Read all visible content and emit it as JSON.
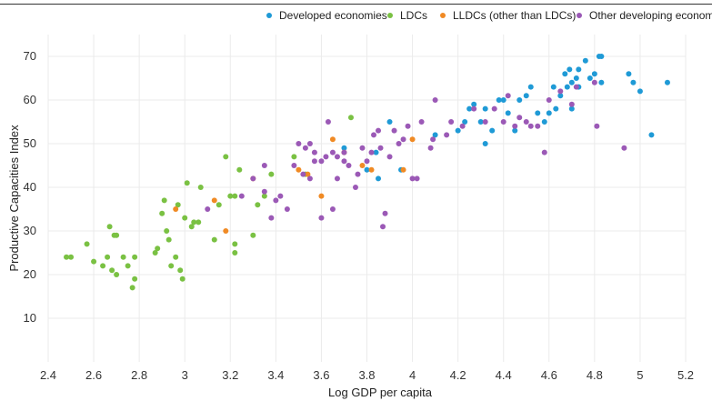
{
  "chart_data": {
    "type": "scatter",
    "xlabel": "Log GDP per capita",
    "ylabel": "Productive Capacities Index",
    "xlim": [
      2.4,
      5.2
    ],
    "ylim": [
      0,
      75
    ],
    "xticks": [
      "2.4",
      "2.6",
      "2.8",
      "3",
      "3.2",
      "3.4",
      "3.6",
      "3.8",
      "4",
      "4.2",
      "4.4",
      "4.6",
      "4.8",
      "5",
      "5.2"
    ],
    "xtick_values": [
      2.4,
      2.6,
      2.8,
      3.0,
      3.2,
      3.4,
      3.6,
      3.8,
      4.0,
      4.2,
      4.4,
      4.6,
      4.8,
      5.0,
      5.2
    ],
    "yticks": [
      "10",
      "20",
      "30",
      "40",
      "50",
      "60",
      "70"
    ],
    "ytick_values": [
      10,
      20,
      30,
      40,
      50,
      60,
      70
    ],
    "grid": true,
    "legend_position": "top-right",
    "series": [
      {
        "name": "Developed economies",
        "color": "#1f9ad6",
        "points": [
          [
            3.7,
            49
          ],
          [
            3.8,
            44
          ],
          [
            3.84,
            48
          ],
          [
            3.85,
            42
          ],
          [
            3.9,
            55
          ],
          [
            3.95,
            44
          ],
          [
            4.1,
            52
          ],
          [
            4.2,
            53
          ],
          [
            4.23,
            55
          ],
          [
            4.25,
            58
          ],
          [
            4.27,
            59
          ],
          [
            4.3,
            55
          ],
          [
            4.32,
            58
          ],
          [
            4.32,
            50
          ],
          [
            4.35,
            53
          ],
          [
            4.38,
            60
          ],
          [
            4.4,
            60
          ],
          [
            4.42,
            57
          ],
          [
            4.45,
            53
          ],
          [
            4.47,
            60
          ],
          [
            4.5,
            61
          ],
          [
            4.52,
            63
          ],
          [
            4.55,
            57
          ],
          [
            4.58,
            55
          ],
          [
            4.6,
            57
          ],
          [
            4.62,
            63
          ],
          [
            4.63,
            58
          ],
          [
            4.65,
            61
          ],
          [
            4.67,
            66
          ],
          [
            4.68,
            63
          ],
          [
            4.69,
            67
          ],
          [
            4.7,
            58
          ],
          [
            4.7,
            64
          ],
          [
            4.72,
            65
          ],
          [
            4.73,
            67
          ],
          [
            4.73,
            63
          ],
          [
            4.76,
            69
          ],
          [
            4.78,
            65
          ],
          [
            4.8,
            66
          ],
          [
            4.82,
            70
          ],
          [
            4.83,
            70
          ],
          [
            4.83,
            64
          ],
          [
            4.95,
            66
          ],
          [
            4.97,
            64
          ],
          [
            5.0,
            62
          ],
          [
            5.05,
            52
          ],
          [
            5.12,
            64
          ]
        ]
      },
      {
        "name": "LDCs",
        "color": "#7ac143",
        "points": [
          [
            2.48,
            24
          ],
          [
            2.5,
            24
          ],
          [
            2.57,
            27
          ],
          [
            2.6,
            23
          ],
          [
            2.64,
            22
          ],
          [
            2.66,
            24
          ],
          [
            2.67,
            31
          ],
          [
            2.68,
            21
          ],
          [
            2.69,
            29
          ],
          [
            2.7,
            20
          ],
          [
            2.7,
            29
          ],
          [
            2.73,
            24
          ],
          [
            2.75,
            22
          ],
          [
            2.77,
            17
          ],
          [
            2.78,
            19
          ],
          [
            2.78,
            24
          ],
          [
            2.87,
            25
          ],
          [
            2.88,
            26
          ],
          [
            2.9,
            34
          ],
          [
            2.91,
            37
          ],
          [
            2.92,
            30
          ],
          [
            2.93,
            28
          ],
          [
            2.94,
            22
          ],
          [
            2.96,
            24
          ],
          [
            2.97,
            36
          ],
          [
            2.98,
            21
          ],
          [
            2.99,
            19
          ],
          [
            3.0,
            33
          ],
          [
            3.01,
            41
          ],
          [
            3.03,
            31
          ],
          [
            3.04,
            32
          ],
          [
            3.06,
            32
          ],
          [
            3.07,
            40
          ],
          [
            3.13,
            28
          ],
          [
            3.15,
            36
          ],
          [
            3.18,
            47
          ],
          [
            3.2,
            38
          ],
          [
            3.22,
            38
          ],
          [
            3.22,
            27
          ],
          [
            3.22,
            25
          ],
          [
            3.24,
            44
          ],
          [
            3.3,
            29
          ],
          [
            3.32,
            36
          ],
          [
            3.35,
            38
          ],
          [
            3.38,
            43
          ],
          [
            3.48,
            47
          ],
          [
            3.53,
            43
          ],
          [
            3.73,
            56
          ]
        ]
      },
      {
        "name": "LLDCs (other than LDCs)",
        "color": "#f08a24",
        "points": [
          [
            2.96,
            35
          ],
          [
            3.13,
            37
          ],
          [
            3.18,
            30
          ],
          [
            3.3,
            42
          ],
          [
            3.5,
            44
          ],
          [
            3.54,
            43
          ],
          [
            3.6,
            38
          ],
          [
            3.65,
            51
          ],
          [
            3.7,
            48
          ],
          [
            3.78,
            45
          ],
          [
            3.82,
            44
          ],
          [
            3.96,
            44
          ],
          [
            4.0,
            51
          ]
        ]
      },
      {
        "name": "Other developing economies",
        "color": "#9b59b6",
        "points": [
          [
            3.1,
            35
          ],
          [
            3.25,
            38
          ],
          [
            3.3,
            42
          ],
          [
            3.35,
            39
          ],
          [
            3.35,
            45
          ],
          [
            3.38,
            33
          ],
          [
            3.4,
            37
          ],
          [
            3.42,
            38
          ],
          [
            3.45,
            35
          ],
          [
            3.48,
            45
          ],
          [
            3.5,
            50
          ],
          [
            3.52,
            43
          ],
          [
            3.53,
            49
          ],
          [
            3.55,
            50
          ],
          [
            3.55,
            42
          ],
          [
            3.57,
            46
          ],
          [
            3.57,
            48
          ],
          [
            3.6,
            33
          ],
          [
            3.6,
            46
          ],
          [
            3.62,
            47
          ],
          [
            3.63,
            55
          ],
          [
            3.65,
            35
          ],
          [
            3.65,
            48
          ],
          [
            3.67,
            47
          ],
          [
            3.67,
            42
          ],
          [
            3.7,
            46
          ],
          [
            3.7,
            48
          ],
          [
            3.72,
            45
          ],
          [
            3.75,
            40
          ],
          [
            3.76,
            43
          ],
          [
            3.78,
            49
          ],
          [
            3.8,
            46
          ],
          [
            3.82,
            48
          ],
          [
            3.83,
            52
          ],
          [
            3.85,
            53
          ],
          [
            3.86,
            49
          ],
          [
            3.87,
            31
          ],
          [
            3.88,
            34
          ],
          [
            3.9,
            47
          ],
          [
            3.92,
            53
          ],
          [
            3.94,
            50
          ],
          [
            3.96,
            51
          ],
          [
            3.98,
            54
          ],
          [
            4.0,
            42
          ],
          [
            4.02,
            42
          ],
          [
            4.04,
            55
          ],
          [
            4.08,
            49
          ],
          [
            4.09,
            51
          ],
          [
            4.1,
            60
          ],
          [
            4.15,
            52
          ],
          [
            4.17,
            55
          ],
          [
            4.22,
            54
          ],
          [
            4.27,
            58
          ],
          [
            4.32,
            55
          ],
          [
            4.36,
            58
          ],
          [
            4.4,
            55
          ],
          [
            4.42,
            61
          ],
          [
            4.45,
            54
          ],
          [
            4.47,
            56
          ],
          [
            4.5,
            55
          ],
          [
            4.52,
            54
          ],
          [
            4.55,
            54
          ],
          [
            4.58,
            48
          ],
          [
            4.6,
            60
          ],
          [
            4.65,
            62
          ],
          [
            4.7,
            59
          ],
          [
            4.72,
            63
          ],
          [
            4.8,
            64
          ],
          [
            4.81,
            54
          ],
          [
            4.93,
            49
          ]
        ]
      }
    ]
  }
}
